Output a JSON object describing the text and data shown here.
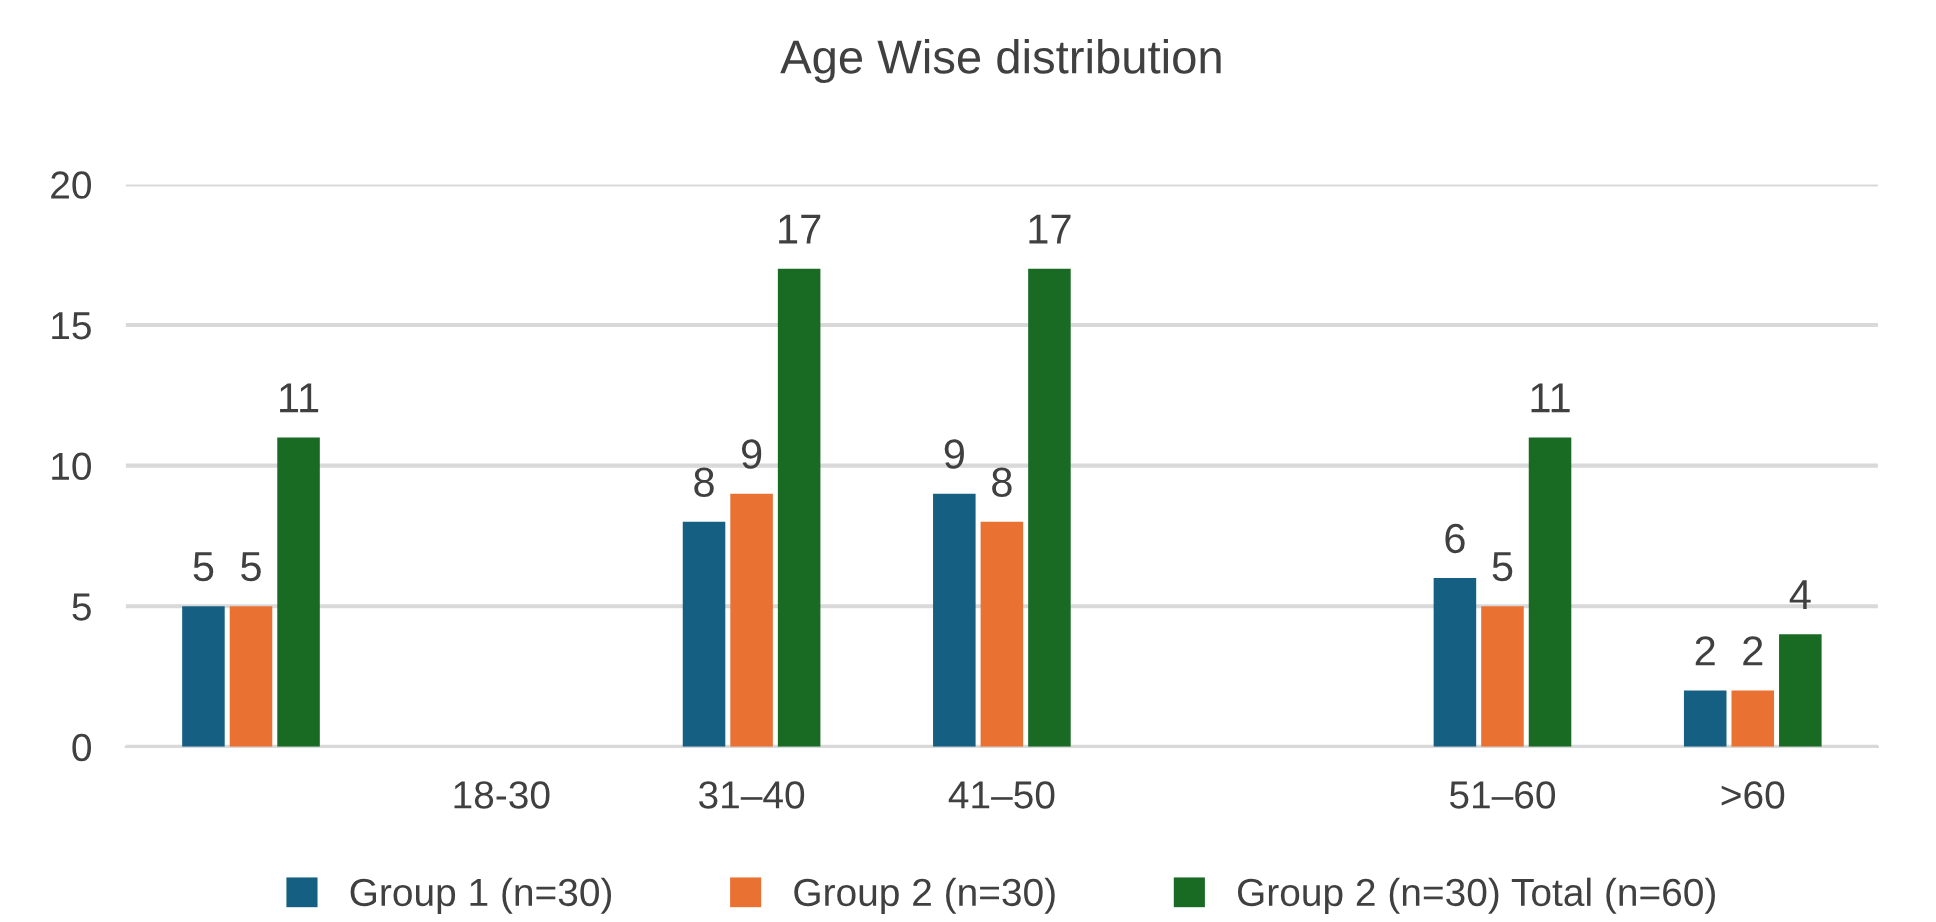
{
  "chart_data": {
    "type": "bar",
    "title": "Age Wise distribution",
    "categories": [
      null,
      "18-30",
      "31–40",
      "41–50",
      null,
      "51–60",
      ">60"
    ],
    "series": [
      {
        "name": "Group 1 (n=30)",
        "color": "#156082",
        "values": [
          5,
          null,
          8,
          9,
          null,
          6,
          2
        ]
      },
      {
        "name": "Group 2 (n=30)",
        "color": "#e97132",
        "values": [
          5,
          null,
          9,
          8,
          null,
          5,
          2
        ]
      },
      {
        "name": "Group 2 (n=30) Total (n=60)",
        "color": "#196b24",
        "values": [
          11,
          null,
          17,
          17,
          null,
          11,
          4
        ]
      }
    ],
    "ylim": [
      0,
      20
    ],
    "yticks": [
      0,
      5,
      10,
      15,
      20
    ],
    "grid": "y",
    "legend": "bottom",
    "data_labels": true
  }
}
